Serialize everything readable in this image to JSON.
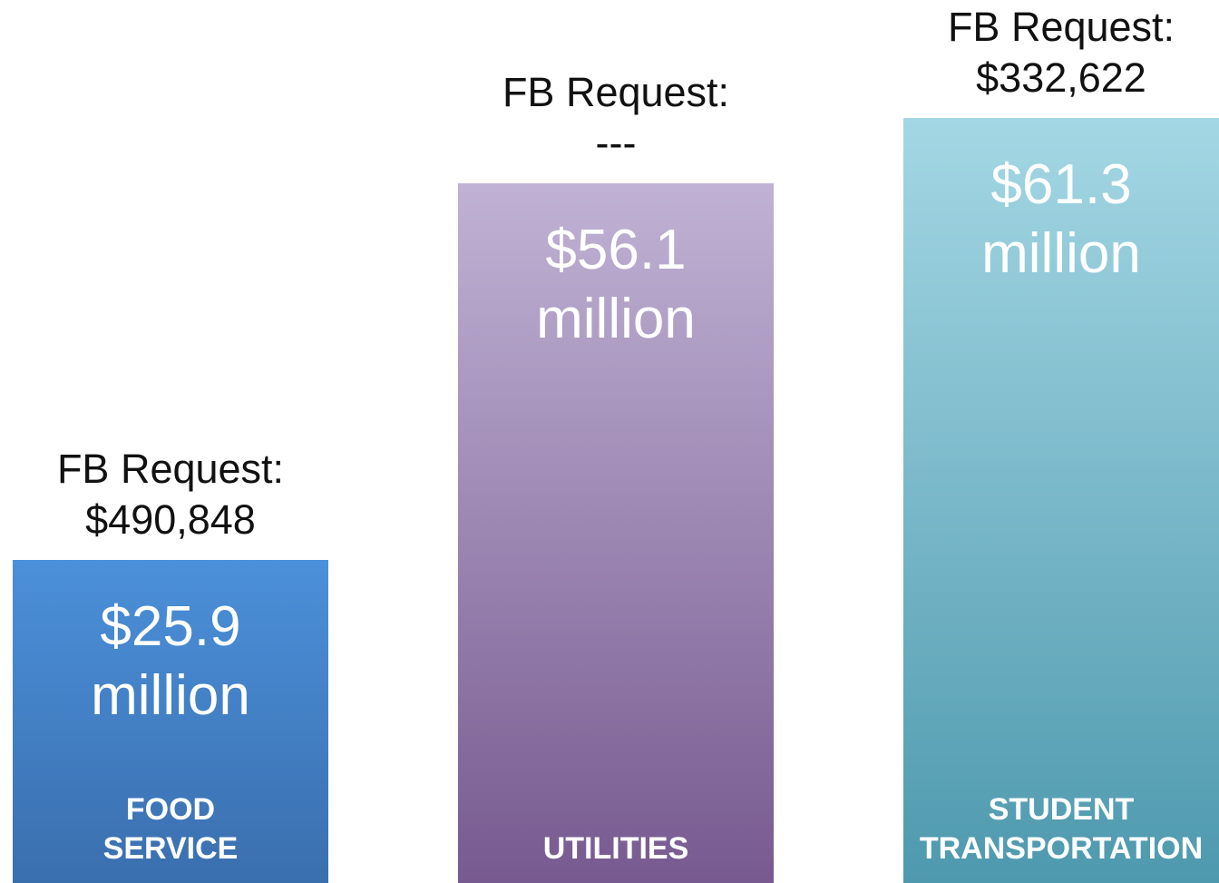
{
  "chart_data": {
    "type": "bar",
    "categories": [
      "FOOD SERVICE",
      "UTILITIES",
      "STUDENT TRANSPORTATION"
    ],
    "values": [
      25.9,
      56.1,
      61.3
    ],
    "value_labels": [
      "$25.9 million",
      "$56.1 million",
      "$61.3 million"
    ],
    "colors": [
      [
        "#4b90da",
        "#3a6fae"
      ],
      [
        "#c0b2d4",
        "#775a90"
      ],
      [
        "#a4d7e4",
        "#4e99ae"
      ]
    ],
    "annotations": [
      {
        "label": "FB Request:",
        "value": "$490,848"
      },
      {
        "label": "FB Request:",
        "value": "---"
      },
      {
        "label": "FB Request:",
        "value": "$332,622"
      }
    ]
  }
}
